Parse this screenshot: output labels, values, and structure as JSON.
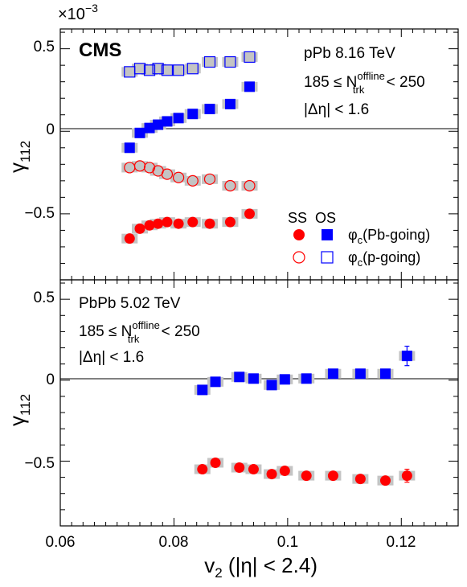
{
  "chart_data": [
    {
      "type": "scatter",
      "panel": "top",
      "title": "",
      "logo_text": "CMS",
      "exponent_label": "×10",
      "exponent_power": "−3",
      "ylabel": "γ",
      "ylabel_sub": "112",
      "xlim": [
        0.06,
        0.13
      ],
      "ylim": [
        -0.9,
        0.62
      ],
      "yticks": [
        {
          "value": 0.5,
          "label": "0.5"
        },
        {
          "value": 0.0,
          "label": "0"
        },
        {
          "value": -0.5,
          "label": "−0.5"
        }
      ],
      "annotations": {
        "system": "pPb 8.16 TeV",
        "mult_prefix": "185 ≤ N",
        "mult_sup": "offline",
        "mult_sub": "trk",
        "mult_suffix": " < 250",
        "eta_cut": "|Δη| < 1.6"
      },
      "legend": {
        "header_ss": "SS",
        "header_os": "OS",
        "row1_phi": "φ",
        "row1_sub": "c",
        "row1_text": "(Pb-going)",
        "row2_phi": "φ",
        "row2_sub": "c",
        "row2_text": "(p-going)",
        "placement": "bottom-right"
      },
      "colors": {
        "red": "#ff0000",
        "blue": "#0000ff",
        "sys": "#c4c4c4",
        "open_fill": "#c4c4c4"
      },
      "series": [
        {
          "key": "os_pb",
          "marker": "filled-square",
          "color": "#0000ff",
          "x": [
            0.0722,
            0.074,
            0.0757,
            0.0772,
            0.0788,
            0.0808,
            0.0833,
            0.0863,
            0.0899,
            0.0933
          ],
          "y": [
            -0.1,
            -0.01,
            0.02,
            0.04,
            0.06,
            0.08,
            0.105,
            0.135,
            0.165,
            0.27
          ]
        },
        {
          "key": "ss_pb",
          "marker": "filled-circle",
          "color": "#ff0000",
          "x": [
            0.0722,
            0.074,
            0.0757,
            0.0772,
            0.0788,
            0.0808,
            0.0833,
            0.0863,
            0.0899,
            0.0933
          ],
          "y": [
            -0.65,
            -0.59,
            -0.57,
            -0.56,
            -0.55,
            -0.56,
            -0.55,
            -0.56,
            -0.55,
            -0.5
          ]
        },
        {
          "key": "os_p",
          "marker": "open-square",
          "color": "#0000ff",
          "x": [
            0.0722,
            0.074,
            0.0757,
            0.0772,
            0.0788,
            0.0808,
            0.0833,
            0.0863,
            0.0899,
            0.0933
          ],
          "y": [
            0.36,
            0.38,
            0.37,
            0.38,
            0.37,
            0.37,
            0.38,
            0.42,
            0.42,
            0.45
          ]
        },
        {
          "key": "ss_p",
          "marker": "open-circle",
          "color": "#ff0000",
          "x": [
            0.0722,
            0.074,
            0.0757,
            0.0772,
            0.0788,
            0.0808,
            0.0833,
            0.0863,
            0.0899,
            0.0933
          ],
          "y": [
            -0.22,
            -0.21,
            -0.22,
            -0.24,
            -0.26,
            -0.28,
            -0.3,
            -0.29,
            -0.33,
            -0.33
          ]
        }
      ]
    },
    {
      "type": "scatter",
      "panel": "bottom",
      "title": "",
      "ylabel": "γ",
      "ylabel_sub": "112",
      "xlabel_main": "v",
      "xlabel_sub": "2",
      "xlabel_rest": " (|η| < 2.4)",
      "xlim": [
        0.06,
        0.13
      ],
      "ylim": [
        -0.9,
        0.62
      ],
      "xticks": [
        {
          "value": 0.06,
          "label": "0.06"
        },
        {
          "value": 0.08,
          "label": "0.08"
        },
        {
          "value": 0.1,
          "label": "0.1"
        },
        {
          "value": 0.12,
          "label": "0.12"
        }
      ],
      "yticks": [
        {
          "value": 0.5,
          "label": "0.5"
        },
        {
          "value": 0.0,
          "label": "0"
        },
        {
          "value": -0.5,
          "label": "−0.5"
        }
      ],
      "annotations": {
        "system": "PbPb 5.02 TeV",
        "mult_prefix": "185 ≤ N",
        "mult_sup": "offline",
        "mult_sub": "trk",
        "mult_suffix": " < 250",
        "eta_cut": "|Δη| < 1.6"
      },
      "series": [
        {
          "key": "os",
          "marker": "filled-square",
          "color": "#0000ff",
          "x": [
            0.085,
            0.0873,
            0.0915,
            0.094,
            0.0972,
            0.0995,
            0.1033,
            0.108,
            0.1128,
            0.1172,
            0.121
          ],
          "y": [
            -0.06,
            -0.01,
            0.02,
            0.01,
            -0.03,
            0.005,
            0.01,
            0.04,
            0.04,
            0.04,
            0.15
          ],
          "err": [
            0,
            0,
            0,
            0,
            0,
            0,
            0,
            0,
            0,
            0,
            0.06
          ]
        },
        {
          "key": "ss",
          "marker": "filled-circle",
          "color": "#ff0000",
          "x": [
            0.085,
            0.0873,
            0.0915,
            0.094,
            0.0972,
            0.0995,
            0.1033,
            0.108,
            0.1128,
            0.1172,
            0.121
          ],
          "y": [
            -0.55,
            -0.51,
            -0.54,
            -0.55,
            -0.58,
            -0.56,
            -0.59,
            -0.59,
            -0.61,
            -0.62,
            -0.59
          ],
          "err": [
            0,
            0,
            0,
            0,
            0,
            0,
            0,
            0,
            0,
            0,
            0.04
          ]
        }
      ]
    }
  ]
}
